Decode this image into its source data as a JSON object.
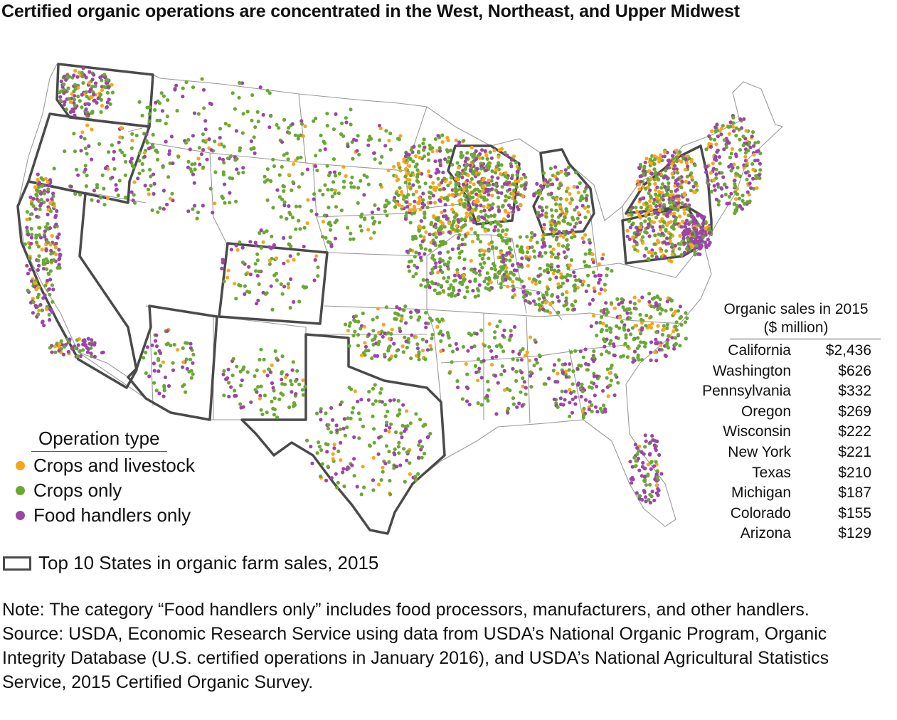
{
  "title": "Certified organic operations are concentrated in the West, Northeast, and Upper Midwest",
  "legend": {
    "title": "Operation type",
    "items": [
      {
        "label": "Crops and livestock",
        "color": "#f5a61c"
      },
      {
        "label": "Crops only",
        "color": "#6aa832"
      },
      {
        "label": "Food handlers only",
        "color": "#9b45a8"
      }
    ]
  },
  "top10_legend": {
    "label": "Top 10 States in organic farm sales, 2015",
    "border_color": "#4a4a4a"
  },
  "sales_table": {
    "title_line1": "Organic sales in 2015",
    "title_line2": "($ million)",
    "rows": [
      {
        "state": "California",
        "value": "$2,436"
      },
      {
        "state": "Washington",
        "value": "$626"
      },
      {
        "state": "Pennsylvania",
        "value": "$332"
      },
      {
        "state": "Oregon",
        "value": "$269"
      },
      {
        "state": "Wisconsin",
        "value": "$222"
      },
      {
        "state": "New York",
        "value": "$221"
      },
      {
        "state": "Texas",
        "value": "$210"
      },
      {
        "state": "Michigan",
        "value": "$187"
      },
      {
        "state": "Colorado",
        "value": "$155"
      },
      {
        "state": "Arizona",
        "value": "$129"
      }
    ]
  },
  "note": "Note: The category “Food handlers only” includes food processors, manufacturers, and other handlers.",
  "source": "Source: USDA, Economic Research Service using data from USDA’s National Organic Program, Organic Integrity Database (U.S. certified operations in January 2016), and USDA’s National Agricultural Statistics Service, 2015 Certified Organic Survey.",
  "colors": {
    "crops_livestock": "#f5a61c",
    "crops_only": "#6aa832",
    "handlers": "#9b45a8",
    "state_border": "#9a9a9a",
    "top10_border": "#4a4a4a"
  }
}
